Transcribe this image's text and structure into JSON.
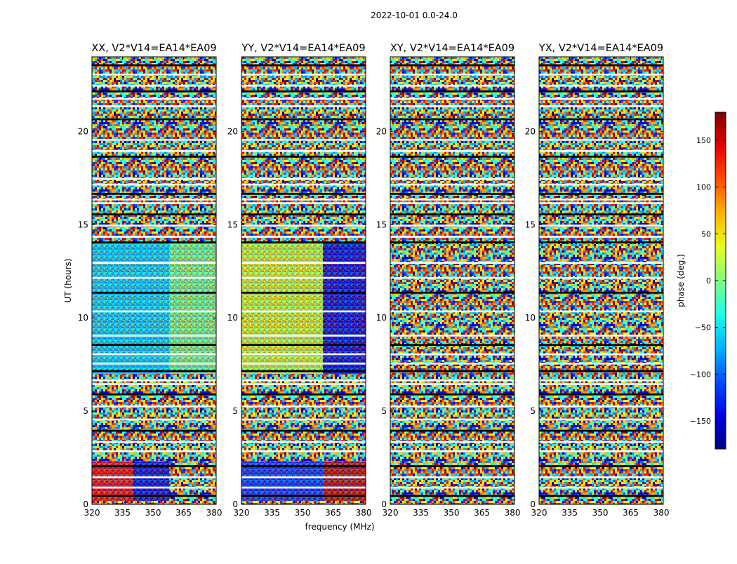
{
  "figure": {
    "suptitle": "2022-10-01 0.0-24.0"
  },
  "chart_data": {
    "type": "heatmap",
    "xlabel": "frequency (MHz)",
    "ylabel": "UT (hours)",
    "xlim": [
      320,
      381
    ],
    "ylim": [
      0,
      24
    ],
    "xticks": [
      "320",
      "335",
      "350",
      "365",
      "380"
    ],
    "yticks": [
      "0",
      "5",
      "10",
      "15",
      "20"
    ],
    "colormap": "jet",
    "colorbar": {
      "label": "phase (deg.)",
      "range": [
        -180,
        180
      ],
      "ticks": [
        "−150",
        "−100",
        "−50",
        "0",
        "50",
        "100",
        "150"
      ]
    },
    "flagged_row_bands_hours": [
      [
        0.4,
        0.5
      ],
      [
        0.85,
        0.95
      ],
      [
        1.4,
        1.5
      ],
      [
        2.0,
        2.1
      ],
      [
        2.8,
        2.9
      ],
      [
        3.3,
        3.4
      ],
      [
        3.9,
        4.0
      ],
      [
        4.5,
        4.6
      ],
      [
        5.2,
        5.3
      ],
      [
        5.85,
        5.95
      ],
      [
        6.4,
        6.5
      ],
      [
        6.6,
        6.7
      ],
      [
        7.1,
        7.2
      ],
      [
        7.5,
        7.6
      ],
      [
        8.0,
        8.1
      ],
      [
        8.5,
        8.6
      ],
      [
        9.0,
        9.1
      ],
      [
        10.3,
        10.4
      ],
      [
        11.3,
        11.4
      ],
      [
        12.1,
        12.2
      ],
      [
        12.9,
        13.0
      ],
      [
        14.0,
        14.1
      ],
      [
        14.3,
        14.4
      ],
      [
        14.9,
        15.0
      ],
      [
        15.5,
        15.6
      ],
      [
        16.1,
        16.2
      ],
      [
        16.3,
        16.4
      ],
      [
        16.6,
        16.7
      ],
      [
        17.1,
        17.2
      ],
      [
        17.4,
        17.5
      ],
      [
        18.6,
        18.7
      ],
      [
        18.9,
        19.0
      ],
      [
        19.5,
        19.6
      ],
      [
        20.6,
        20.7
      ],
      [
        21.3,
        21.4
      ],
      [
        21.7,
        21.8
      ],
      [
        22.1,
        22.2
      ],
      [
        22.4,
        22.5
      ],
      [
        23.0,
        23.1
      ],
      [
        23.5,
        23.6
      ]
    ],
    "panels": [
      {
        "title": "XX, V2*V14=EA14*EA09",
        "regions": [
          {
            "freq": [
              320,
              358
            ],
            "ut": [
              7.0,
              14.0
            ],
            "phase_deg": -60
          },
          {
            "freq": [
              358,
              381
            ],
            "ut": [
              7.0,
              14.0
            ],
            "phase_deg": 0
          },
          {
            "freq": [
              320,
              340
            ],
            "ut": [
              0.2,
              2.3
            ],
            "phase_deg": 140
          },
          {
            "freq": [
              340,
              358
            ],
            "ut": [
              0.2,
              2.3
            ],
            "phase_deg": -150
          }
        ]
      },
      {
        "title": "YY, V2*V14=EA14*EA09",
        "regions": [
          {
            "freq": [
              320,
              360
            ],
            "ut": [
              7.0,
              14.0
            ],
            "phase_deg": 30
          },
          {
            "freq": [
              360,
              381
            ],
            "ut": [
              7.0,
              14.0
            ],
            "phase_deg": -150
          },
          {
            "freq": [
              320,
              360
            ],
            "ut": [
              0.2,
              2.3
            ],
            "phase_deg": -120
          },
          {
            "freq": [
              360,
              381
            ],
            "ut": [
              0.2,
              2.3
            ],
            "phase_deg": 160
          }
        ]
      },
      {
        "title": "XY, V2*V14=EA14*EA09",
        "regions": []
      },
      {
        "title": "YX, V2*V14=EA14*EA09",
        "regions": []
      }
    ]
  }
}
